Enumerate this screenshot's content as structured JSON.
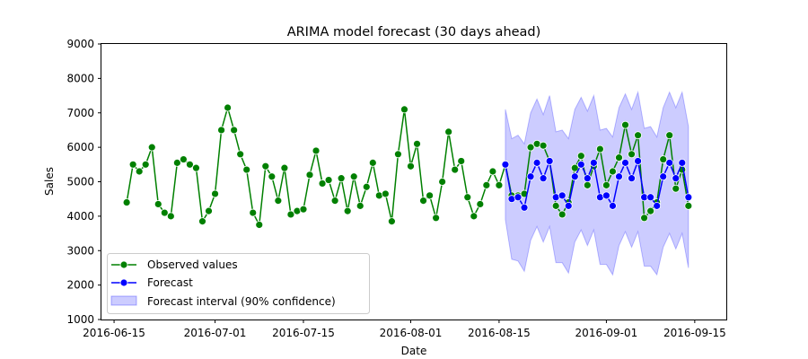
{
  "chart_data": {
    "type": "line",
    "title": "ARIMA model forecast (30 days ahead)",
    "xlabel": "Date",
    "ylabel": "Sales",
    "ylim": [
      1000,
      9000
    ],
    "xlim": [
      "2016-06-13",
      "2016-09-20"
    ],
    "x_ticks": [
      "2016-06-15",
      "2016-07-01",
      "2016-07-15",
      "2016-08-01",
      "2016-08-15",
      "2016-09-01",
      "2016-09-15"
    ],
    "y_ticks": [
      1000,
      2000,
      3000,
      4000,
      5000,
      6000,
      7000,
      8000,
      9000
    ],
    "grid": false,
    "legend_position": "lower-left",
    "colors": {
      "observed": "#008000",
      "forecast": "#0000ff",
      "interval": "#0000ff"
    },
    "legend": {
      "observed": "Observed values",
      "forecast": "Forecast",
      "interval": "Forecast interval (90% confidence)"
    },
    "observed": {
      "start_date": "2016-06-17",
      "values": [
        4400,
        5500,
        5300,
        5500,
        6000,
        4350,
        4100,
        4000,
        5550,
        5650,
        5500,
        5400,
        3850,
        4150,
        4650,
        6500,
        7150,
        6500,
        5800,
        5350,
        4100,
        3750,
        5450,
        5150,
        4450,
        5400,
        4050,
        4150,
        4200,
        5200,
        5900,
        4950,
        5050,
        4450,
        5100,
        4150,
        5150,
        4300,
        4850,
        5550,
        4600,
        4650,
        3850,
        5800,
        7100,
        5450,
        6100,
        4450,
        4600,
        3950,
        5000,
        6450,
        5350,
        5600,
        4550,
        4000,
        4350,
        4900,
        5300,
        4900,
        5500,
        4600,
        4600,
        4650,
        6000,
        6100,
        6050,
        5600,
        4300,
        4050,
        4400,
        5400,
        5750,
        4900,
        5450,
        5950,
        4900,
        5300,
        5700,
        6650,
        5800,
        6350,
        3950,
        4150,
        4400,
        5650,
        6350,
        4800,
        5350,
        4300
      ]
    },
    "forecast": {
      "start_date": "2016-08-16",
      "values": [
        5500,
        4500,
        4550,
        4250,
        5150,
        5550,
        5100,
        5600,
        4550,
        4600,
        4300,
        5150,
        5500,
        5100,
        5550,
        4550,
        4600,
        4300,
        5150,
        5550,
        5100,
        5600,
        4550,
        4550,
        4300,
        5150,
        5550,
        5100,
        5550,
        4550
      ],
      "lower": [
        3900,
        2750,
        2700,
        2400,
        3300,
        3700,
        3250,
        3700,
        2650,
        2650,
        2350,
        3250,
        3600,
        3150,
        3600,
        2600,
        2600,
        2300,
        3150,
        3550,
        3100,
        3550,
        2550,
        2550,
        2300,
        3100,
        3500,
        3050,
        3500,
        2500
      ],
      "upper": [
        7100,
        6250,
        6350,
        6100,
        7000,
        7400,
        6950,
        7500,
        6450,
        6500,
        6250,
        7100,
        7450,
        7050,
        7500,
        6500,
        6550,
        6300,
        7150,
        7550,
        7100,
        7600,
        6550,
        6600,
        6300,
        7150,
        7600,
        7150,
        7600,
        6600
      ]
    }
  }
}
